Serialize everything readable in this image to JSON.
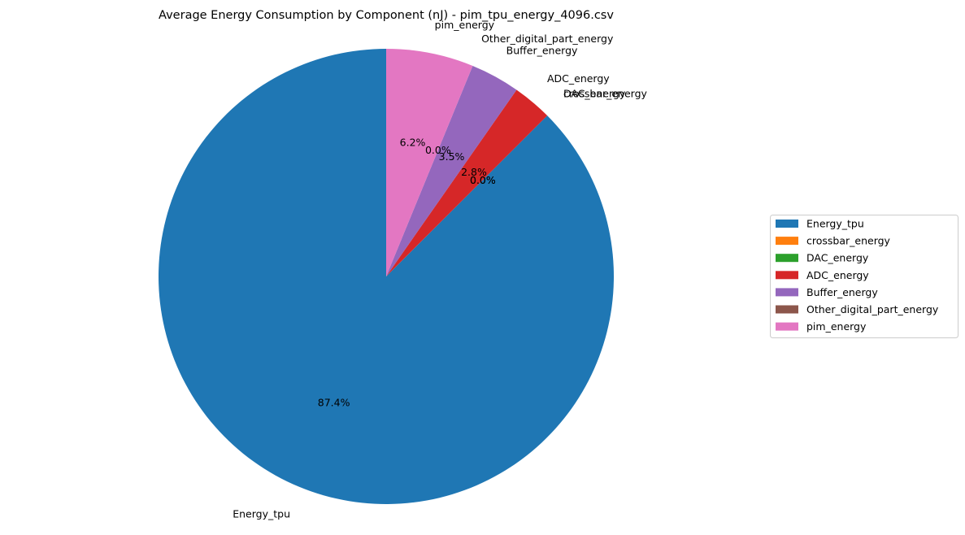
{
  "chart_data": {
    "type": "pie",
    "title": "Average Energy Consumption by Component (nJ) - pim_tpu_energy_4096.csv",
    "legend_position": "right",
    "start_angle_deg": 90,
    "direction": "counterclockwise",
    "slices": [
      {
        "label": "Energy_tpu",
        "percent": 87.4,
        "pct_label": "87.4%",
        "color": "#1f77b4"
      },
      {
        "label": "crossbar_energy",
        "percent": 0.0,
        "pct_label": "0.0%",
        "color": "#ff7f0e"
      },
      {
        "label": "DAC_energy",
        "percent": 0.0,
        "pct_label": "0.0%",
        "color": "#2ca02c"
      },
      {
        "label": "ADC_energy",
        "percent": 2.8,
        "pct_label": "2.8%",
        "color": "#d62728"
      },
      {
        "label": "Buffer_energy",
        "percent": 3.5,
        "pct_label": "3.5%",
        "color": "#9467bd"
      },
      {
        "label": "Other_digital_part_energy",
        "percent": 0.0,
        "pct_label": "0.0%",
        "color": "#8c564b"
      },
      {
        "label": "pim_energy",
        "percent": 6.2,
        "pct_label": "6.2%",
        "color": "#e377c2"
      }
    ]
  }
}
